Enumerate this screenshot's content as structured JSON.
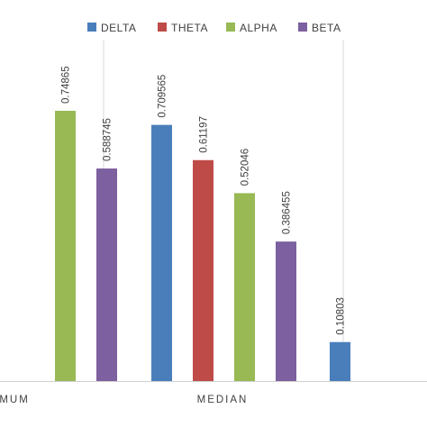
{
  "colors": {
    "DELTA": "#4a7ebb",
    "THETA": "#be4b48",
    "ALPHA": "#98b954",
    "BETA": "#7d60a0",
    "divider": "#d9d9d9",
    "baseline": "#d0d0d0"
  },
  "chart_data": {
    "type": "bar",
    "categories": [
      "MAXIMUM",
      "MEDIAN",
      ""
    ],
    "series": [
      {
        "name": "DELTA",
        "values": [
          null,
          0.709565,
          0.10803
        ]
      },
      {
        "name": "THETA",
        "values": [
          null,
          0.61197,
          null
        ]
      },
      {
        "name": "ALPHA",
        "values": [
          0.74865,
          0.52046,
          null
        ]
      },
      {
        "name": "BETA",
        "values": [
          0.588745,
          0.386455,
          null
        ]
      }
    ],
    "data_labels": {
      "DELTA": [
        null,
        "0.709565",
        "0.10803"
      ],
      "THETA": [
        null,
        "0.61197",
        null
      ],
      "ALPHA": [
        "0.74865",
        "0.52046",
        null
      ],
      "BETA": [
        "0.588745",
        "0.386455",
        null
      ]
    },
    "ylim": [
      0,
      0.9
    ],
    "legend_position": "top-right",
    "grid": false
  }
}
